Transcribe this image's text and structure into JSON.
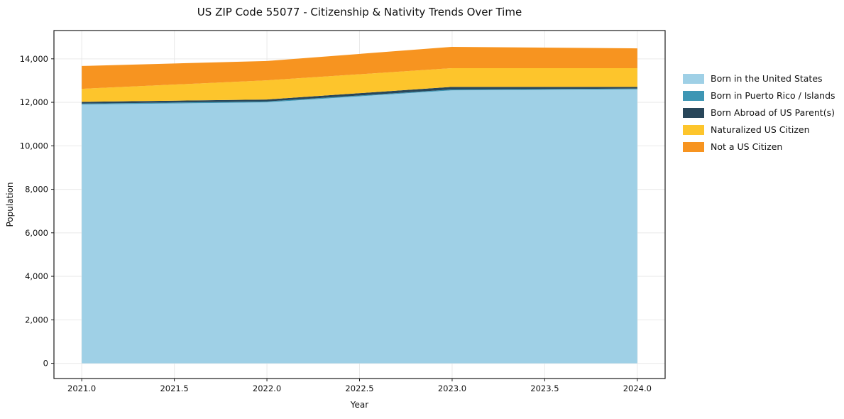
{
  "chart_data": {
    "type": "area",
    "stacked": true,
    "title": "US ZIP Code 55077 - Citizenship & Nativity Trends Over Time",
    "xlabel": "Year",
    "ylabel": "Population",
    "x": [
      2021,
      2022,
      2023,
      2024
    ],
    "series": [
      {
        "name": "Born in the United States",
        "color": "#9fd0e6",
        "values": [
          11900,
          12000,
          12550,
          12600
        ]
      },
      {
        "name": "Born in Puerto Rico / Islands",
        "color": "#3e96b4",
        "values": [
          40,
          40,
          40,
          30
        ]
      },
      {
        "name": "Born Abroad of US Parent(s)",
        "color": "#28465a",
        "values": [
          80,
          90,
          120,
          80
        ]
      },
      {
        "name": "Naturalized US Citizen",
        "color": "#fdc52c",
        "values": [
          600,
          880,
          860,
          860
        ]
      },
      {
        "name": "Not a US Citizen",
        "color": "#f79420",
        "values": [
          1050,
          890,
          980,
          910
        ]
      }
    ],
    "xticks": [
      "2021.0",
      "2021.5",
      "2022.0",
      "2022.5",
      "2023.0",
      "2023.5",
      "2024.0"
    ],
    "xtick_values": [
      2021,
      2021.5,
      2022,
      2022.5,
      2023,
      2023.5,
      2024
    ],
    "yticks": [
      "0",
      "2,000",
      "4,000",
      "6,000",
      "8,000",
      "10,000",
      "12,000",
      "14,000"
    ],
    "ytick_values": [
      0,
      2000,
      4000,
      6000,
      8000,
      10000,
      12000,
      14000
    ],
    "xlim": [
      2020.85,
      2024.15
    ],
    "ylim": [
      -700,
      15300
    ],
    "grid": true,
    "legend_position": "right",
    "grid_color": "#e9e9e9",
    "spine_color": "#1a1a1a",
    "text_color": "#111111"
  }
}
